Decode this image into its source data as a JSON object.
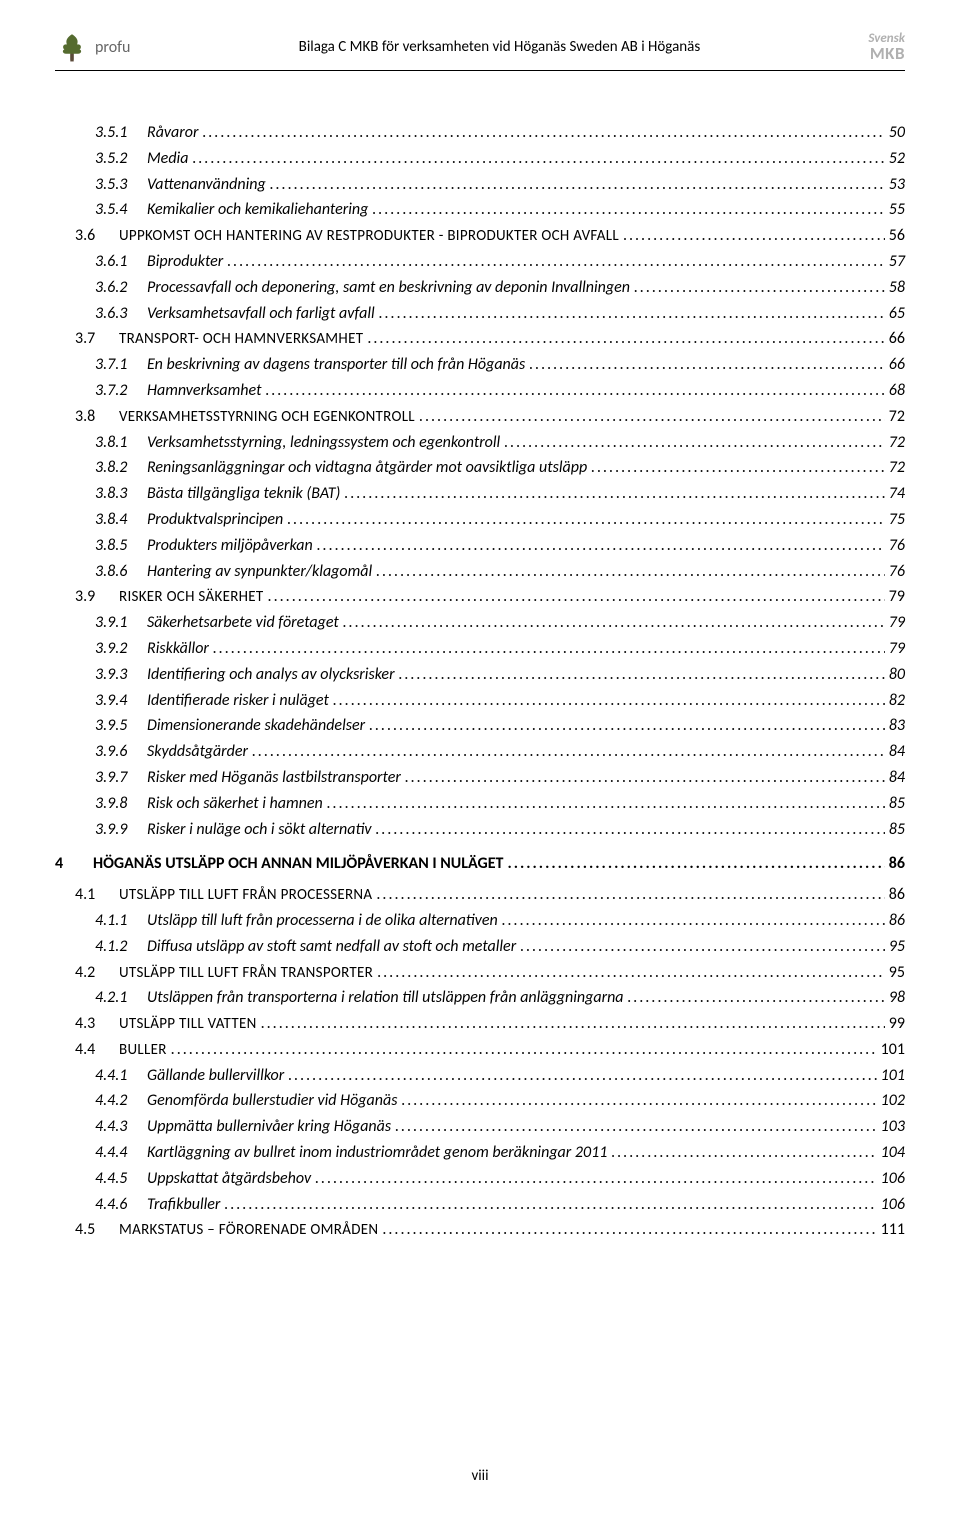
{
  "header": {
    "brand_left": "profu",
    "title": "Bilaga C MKB för verksamheten vid Höganäs Sweden AB i Höganäs",
    "brand_right_line1": "Svensk",
    "brand_right_line2": "MKB"
  },
  "footer": {
    "page_label": "viii"
  },
  "toc": [
    {
      "level": 3,
      "num": "3.5.1",
      "title": "Råvaror",
      "page": "50"
    },
    {
      "level": 3,
      "num": "3.5.2",
      "title": "Media",
      "page": "52"
    },
    {
      "level": 3,
      "num": "3.5.3",
      "title": "Vattenanvändning",
      "page": "53"
    },
    {
      "level": 3,
      "num": "3.5.4",
      "title": "Kemikalier och kemikaliehantering",
      "page": "55"
    },
    {
      "level": 2,
      "num": "3.6",
      "title": "Uppkomst och hantering av restprodukter - biprodukter och avfall",
      "page": "56"
    },
    {
      "level": 3,
      "num": "3.6.1",
      "title": "Biprodukter",
      "page": "57"
    },
    {
      "level": 3,
      "num": "3.6.2",
      "title": "Processavfall och deponering, samt en beskrivning av deponin Invallningen",
      "page": "58"
    },
    {
      "level": 3,
      "num": "3.6.3",
      "title": "Verksamhetsavfall och farligt avfall",
      "page": "65"
    },
    {
      "level": 2,
      "num": "3.7",
      "title": "Transport- och hamnverksamhet",
      "page": "66"
    },
    {
      "level": 3,
      "num": "3.7.1",
      "title": "En beskrivning av dagens transporter till och från Höganäs",
      "page": "66"
    },
    {
      "level": 3,
      "num": "3.7.2",
      "title": "Hamnverksamhet",
      "page": "68"
    },
    {
      "level": 2,
      "num": "3.8",
      "title": "Verksamhetsstyrning och egenkontroll",
      "page": "72"
    },
    {
      "level": 3,
      "num": "3.8.1",
      "title": "Verksamhetsstyrning, ledningssystem och egenkontroll",
      "page": "72"
    },
    {
      "level": 3,
      "num": "3.8.2",
      "title": "Reningsanläggningar och vidtagna åtgärder mot oavsiktliga utsläpp",
      "page": "72"
    },
    {
      "level": 3,
      "num": "3.8.3",
      "title": "Bästa tillgängliga teknik (BAT)",
      "page": "74"
    },
    {
      "level": 3,
      "num": "3.8.4",
      "title": "Produktvalsprincipen",
      "page": "75"
    },
    {
      "level": 3,
      "num": "3.8.5",
      "title": "Produkters miljöpåverkan",
      "page": "76"
    },
    {
      "level": 3,
      "num": "3.8.6",
      "title": "Hantering av synpunkter/klagomål",
      "page": "76"
    },
    {
      "level": 2,
      "num": "3.9",
      "title": "Risker och säkerhet",
      "page": "79"
    },
    {
      "level": 3,
      "num": "3.9.1",
      "title": "Säkerhetsarbete vid företaget",
      "page": "79"
    },
    {
      "level": 3,
      "num": "3.9.2",
      "title": "Riskkällor",
      "page": "79"
    },
    {
      "level": 3,
      "num": "3.9.3",
      "title": "Identifiering och analys av olycksrisker",
      "page": "80"
    },
    {
      "level": 3,
      "num": "3.9.4",
      "title": "Identifierade risker i nuläget",
      "page": "82"
    },
    {
      "level": 3,
      "num": "3.9.5",
      "title": "Dimensionerande skadehändelser",
      "page": "83"
    },
    {
      "level": 3,
      "num": "3.9.6",
      "title": "Skyddsåtgärder",
      "page": "84"
    },
    {
      "level": 3,
      "num": "3.9.7",
      "title": "Risker med Höganäs lastbilstransporter",
      "page": "84"
    },
    {
      "level": 3,
      "num": "3.9.8",
      "title": "Risk och säkerhet i hamnen",
      "page": "85"
    },
    {
      "level": 3,
      "num": "3.9.9",
      "title": "Risker i nuläge och i sökt alternativ",
      "page": "85"
    },
    {
      "level": 1,
      "num": "4",
      "title": "HÖGANÄS UTSLÄPP OCH ANNAN MILJÖPÅVERKAN I NULÄGET",
      "page": "86"
    },
    {
      "level": 2,
      "num": "4.1",
      "title": "Utsläpp till luft från processerna",
      "page": "86"
    },
    {
      "level": 3,
      "num": "4.1.1",
      "title": "Utsläpp till luft från processerna i de olika alternativen",
      "page": "86"
    },
    {
      "level": 3,
      "num": "4.1.2",
      "title": "Diffusa utsläpp av stoft samt nedfall av stoft och metaller",
      "page": "95"
    },
    {
      "level": 2,
      "num": "4.2",
      "title": "Utsläpp till luft från transporter",
      "page": "95"
    },
    {
      "level": 3,
      "num": "4.2.1",
      "title": "Utsläppen från transporterna i relation till utsläppen från anläggningarna",
      "page": "98"
    },
    {
      "level": 2,
      "num": "4.3",
      "title": "Utsläpp till vatten",
      "page": "99"
    },
    {
      "level": 2,
      "num": "4.4",
      "title": "Buller",
      "page": "101"
    },
    {
      "level": 3,
      "num": "4.4.1",
      "title": "Gällande bullervillkor",
      "page": "101"
    },
    {
      "level": 3,
      "num": "4.4.2",
      "title": "Genomförda bullerstudier vid Höganäs",
      "page": "102"
    },
    {
      "level": 3,
      "num": "4.4.3",
      "title": "Uppmätta bullernivåer kring Höganäs",
      "page": "103"
    },
    {
      "level": 3,
      "num": "4.4.4",
      "title": "Kartläggning av bullret inom industriområdet genom beräkningar 2011",
      "page": "104"
    },
    {
      "level": 3,
      "num": "4.4.5",
      "title": "Uppskattat åtgärdsbehov",
      "page": "106"
    },
    {
      "level": 3,
      "num": "4.4.6",
      "title": "Trafikbuller",
      "page": "106"
    },
    {
      "level": 2,
      "num": "4.5",
      "title": "Markstatus – förorenade områden",
      "page": "111"
    }
  ]
}
